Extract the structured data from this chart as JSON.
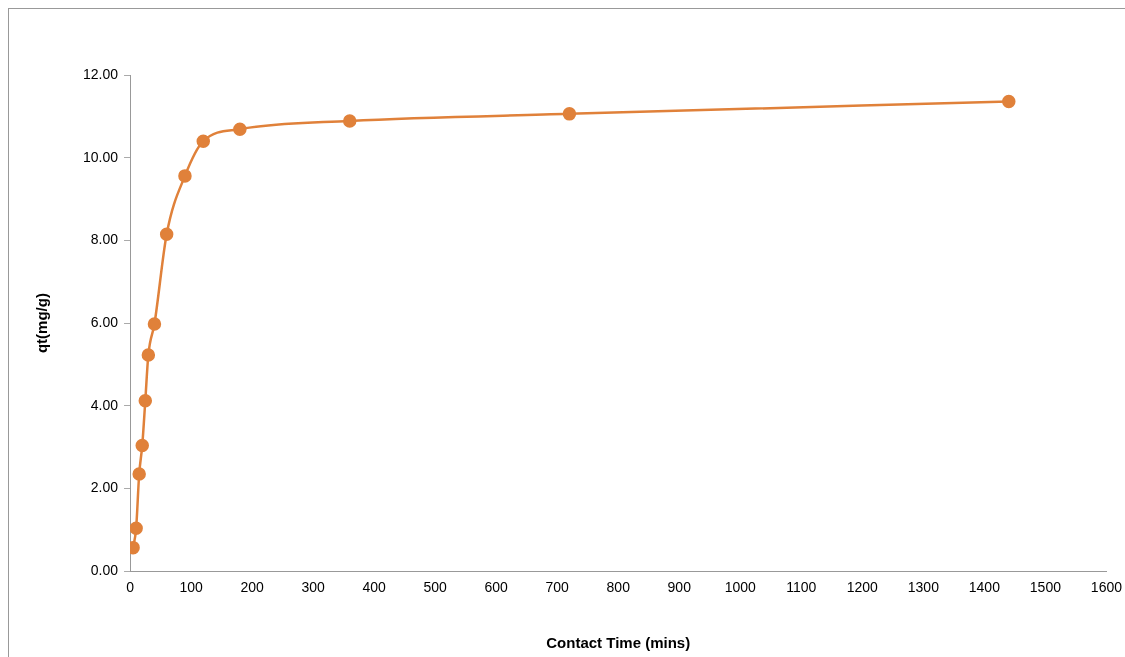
{
  "chart_data": {
    "type": "line",
    "xlabel": "Contact Time (mins)",
    "ylabel": "qt(mg/g)",
    "x": [
      5,
      10,
      15,
      20,
      25,
      30,
      40,
      60,
      90,
      120,
      180,
      360,
      720,
      1440
    ],
    "series": [
      {
        "color": "#e0813a",
        "values": [
          0.57,
          1.04,
          2.35,
          3.04,
          4.12,
          5.23,
          5.98,
          8.15,
          9.56,
          10.4,
          10.69,
          10.89,
          11.06,
          11.36
        ]
      }
    ],
    "xlim": [
      0,
      1600
    ],
    "xticks": [
      0,
      100,
      200,
      300,
      400,
      500,
      600,
      700,
      800,
      900,
      1000,
      1100,
      1200,
      1300,
      1400,
      1500,
      1600
    ],
    "ylim": [
      0,
      12
    ],
    "yticks": [
      {
        "value": 0,
        "label": "0.00"
      },
      {
        "value": 2,
        "label": "2.00"
      },
      {
        "value": 4,
        "label": "4.00"
      },
      {
        "value": 6,
        "label": "6.00"
      },
      {
        "value": 8,
        "label": "8.00"
      },
      {
        "value": 10,
        "label": "10.00"
      },
      {
        "value": 12,
        "label": "12.00"
      }
    ],
    "grid": false,
    "legend": false,
    "marker": "circle",
    "line_style": "solid"
  }
}
